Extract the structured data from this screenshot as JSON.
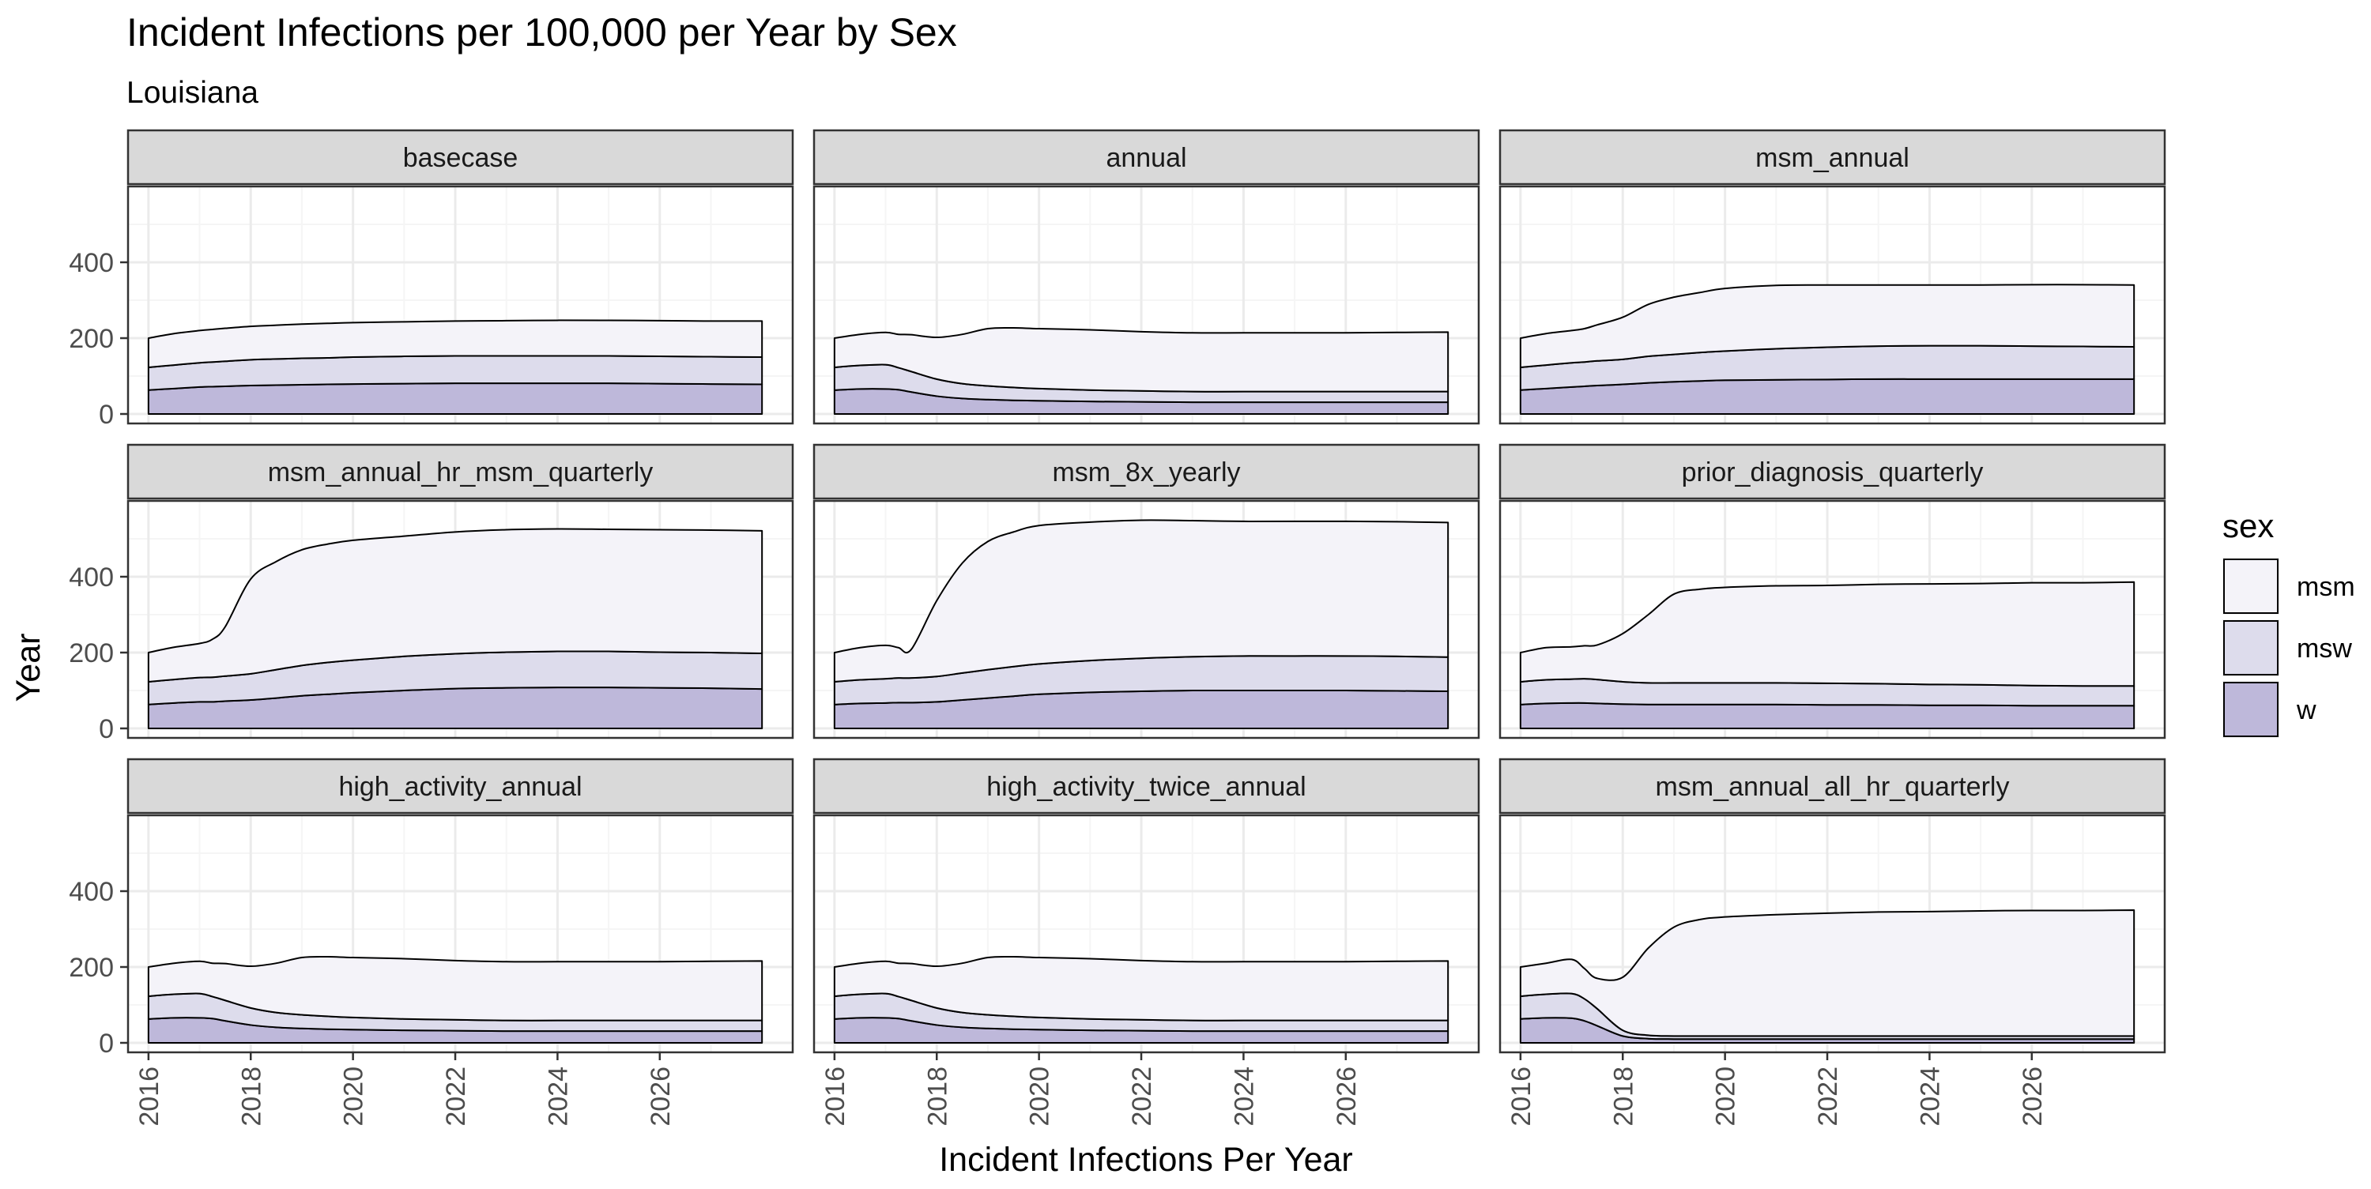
{
  "title": "Incident Infections per 100,000 per Year by Sex",
  "subtitle": "Louisiana",
  "colors": {
    "msm": "#F4F3F9",
    "msw": "#DDDCEC",
    "w": "#BEB8DA",
    "strip_fill": "#D9D9D9",
    "grid_major": "#EBEBEB",
    "grid_minor": "#F5F5F5",
    "border": "#333333"
  },
  "chart_data": {
    "type": "area",
    "stacked": true,
    "xlabel": "Incident Infections Per Year",
    "ylabel": "Year",
    "xlim": [
      2015.6,
      2028.6
    ],
    "ylim": [
      -25,
      600
    ],
    "x_ticks": [
      2016,
      2018,
      2020,
      2022,
      2024,
      2026
    ],
    "y_ticks": [
      0,
      200,
      400
    ],
    "grid": true,
    "legend": {
      "title": "sex",
      "position": "right",
      "entries": [
        "msm",
        "msw",
        "w"
      ]
    },
    "x": [
      2016,
      2016.5,
      2017,
      2017.25,
      2017.5,
      2018,
      2018.5,
      2019,
      2019.5,
      2020,
      2021,
      2022,
      2023,
      2024,
      2025,
      2026,
      2027,
      2028
    ],
    "panels": [
      {
        "name": "basecase",
        "series": [
          {
            "name": "w",
            "values": [
              63,
              67,
              71,
              72,
              73,
              75,
              76,
              77,
              78,
              79,
              80,
              81,
              81,
              81,
              81,
              80,
              79,
              78
            ]
          },
          {
            "name": "msw",
            "values": [
              60,
              62,
              64,
              65,
              66,
              68,
              69,
              70,
              70,
              71,
              72,
              72,
              72,
              72,
              72,
              72,
              72,
              72
            ]
          },
          {
            "name": "msm",
            "values": [
              77,
              83,
              85,
              86,
              87,
              88,
              89,
              90,
              91,
              91,
              91,
              92,
              93,
              94,
              94,
              94,
              94,
              95
            ]
          }
        ]
      },
      {
        "name": "annual",
        "series": [
          {
            "name": "w",
            "values": [
              63,
              66,
              66,
              64,
              58,
              47,
              41,
              38,
              36,
              35,
              33,
              32,
              31,
              31,
              31,
              31,
              31,
              31
            ]
          },
          {
            "name": "msw",
            "values": [
              60,
              62,
              64,
              58,
              54,
              45,
              39,
              36,
              34,
              32,
              30,
              29,
              28,
              28,
              28,
              28,
              28,
              28
            ]
          },
          {
            "name": "msm",
            "values": [
              77,
              82,
              85,
              88,
              97,
              110,
              130,
              151,
              157,
              158,
              159,
              156,
              155,
              155,
              155,
              155,
              156,
              157
            ]
          }
        ]
      },
      {
        "name": "msm_annual",
        "series": [
          {
            "name": "w",
            "values": [
              63,
              67,
              71,
              73,
              75,
              78,
              82,
              85,
              87,
              89,
              90,
              91,
              92,
              92,
              92,
              92,
              92,
              92
            ]
          },
          {
            "name": "msw",
            "values": [
              60,
              62,
              64,
              64,
              65,
              66,
              70,
              72,
              75,
              77,
              82,
              85,
              87,
              88,
              88,
              87,
              86,
              85
            ]
          },
          {
            "name": "msm",
            "values": [
              77,
              83,
              85,
              88,
              95,
              111,
              137,
              151,
              158,
              165,
              167,
              164,
              161,
              160,
              160,
              162,
              163,
              163
            ]
          }
        ]
      },
      {
        "name": "msm_annual_hr_msm_quarterly",
        "series": [
          {
            "name": "w",
            "values": [
              63,
              67,
              70,
              70,
              72,
              75,
              80,
              86,
              90,
              94,
              100,
              105,
              107,
              108,
              108,
              107,
              106,
              104
            ]
          },
          {
            "name": "msw",
            "values": [
              60,
              62,
              64,
              65,
              66,
              69,
              75,
              80,
              84,
              86,
              90,
              92,
              94,
              95,
              95,
              94,
              94,
              94
            ]
          },
          {
            "name": "msm",
            "values": [
              77,
              85,
              90,
              100,
              130,
              250,
              285,
              305,
              312,
              316,
              317,
              321,
              323,
              323,
              322,
              323,
              323,
              323
            ]
          }
        ]
      },
      {
        "name": "msm_8x_yearly",
        "series": [
          {
            "name": "w",
            "values": [
              63,
              66,
              67,
              68,
              68,
              70,
              75,
              80,
              85,
              90,
              95,
              98,
              100,
              100,
              100,
              100,
              99,
              98
            ]
          },
          {
            "name": "msw",
            "values": [
              60,
              62,
              64,
              65,
              65,
              67,
              71,
              75,
              78,
              80,
              84,
              87,
              89,
              91,
              91,
              91,
              91,
              90
            ]
          },
          {
            "name": "msm",
            "values": [
              77,
              85,
              88,
              80,
              75,
              200,
              290,
              338,
              355,
              365,
              365,
              364,
              359,
              355,
              355,
              355,
              355,
              355
            ]
          }
        ]
      },
      {
        "name": "prior_diagnosis_quarterly",
        "series": [
          {
            "name": "w",
            "values": [
              63,
              66,
              67,
              67,
              66,
              64,
              63,
              63,
              63,
              63,
              63,
              62,
              62,
              61,
              61,
              60,
              60,
              60
            ]
          },
          {
            "name": "msw",
            "values": [
              60,
              62,
              63,
              64,
              63,
              59,
              57,
              57,
              57,
              57,
              57,
              57,
              56,
              55,
              54,
              53,
              52,
              52
            ]
          },
          {
            "name": "msm",
            "values": [
              77,
              85,
              85,
              87,
              91,
              127,
              180,
              234,
              247,
              252,
              256,
              258,
              262,
              265,
              267,
              271,
              272,
              274
            ]
          }
        ]
      },
      {
        "name": "high_activity_annual",
        "series": [
          {
            "name": "w",
            "values": [
              63,
              66,
              66,
              64,
              58,
              47,
              41,
              38,
              36,
              35,
              33,
              32,
              31,
              31,
              31,
              31,
              31,
              31
            ]
          },
          {
            "name": "msw",
            "values": [
              60,
              62,
              64,
              58,
              54,
              45,
              39,
              36,
              34,
              32,
              30,
              29,
              28,
              28,
              28,
              28,
              28,
              28
            ]
          },
          {
            "name": "msm",
            "values": [
              77,
              82,
              85,
              88,
              97,
              110,
              130,
              151,
              157,
              158,
              159,
              156,
              155,
              155,
              155,
              155,
              156,
              157
            ]
          }
        ]
      },
      {
        "name": "high_activity_twice_annual",
        "series": [
          {
            "name": "w",
            "values": [
              63,
              66,
              66,
              64,
              58,
              47,
              41,
              38,
              36,
              35,
              33,
              32,
              31,
              31,
              31,
              31,
              31,
              31
            ]
          },
          {
            "name": "msw",
            "values": [
              60,
              62,
              64,
              58,
              54,
              45,
              39,
              36,
              34,
              32,
              30,
              29,
              28,
              28,
              28,
              28,
              28,
              28
            ]
          },
          {
            "name": "msm",
            "values": [
              77,
              82,
              85,
              88,
              97,
              110,
              130,
              151,
              157,
              158,
              159,
              156,
              155,
              155,
              155,
              155,
              156,
              157
            ]
          }
        ]
      },
      {
        "name": "msm_annual_all_hr_quarterly",
        "series": [
          {
            "name": "w",
            "values": [
              63,
              66,
              65,
              58,
              45,
              18,
              11,
              10,
              10,
              10,
              10,
              10,
              10,
              10,
              10,
              10,
              10,
              10
            ]
          },
          {
            "name": "msw",
            "values": [
              60,
              62,
              65,
              58,
              45,
              15,
              9,
              8,
              8,
              8,
              8,
              8,
              8,
              8,
              8,
              8,
              8,
              8
            ]
          },
          {
            "name": "msm",
            "values": [
              77,
              82,
              90,
              80,
              80,
              140,
              230,
              287,
              307,
              314,
              320,
              324,
              327,
              328,
              330,
              331,
              331,
              332
            ]
          }
        ]
      }
    ]
  }
}
